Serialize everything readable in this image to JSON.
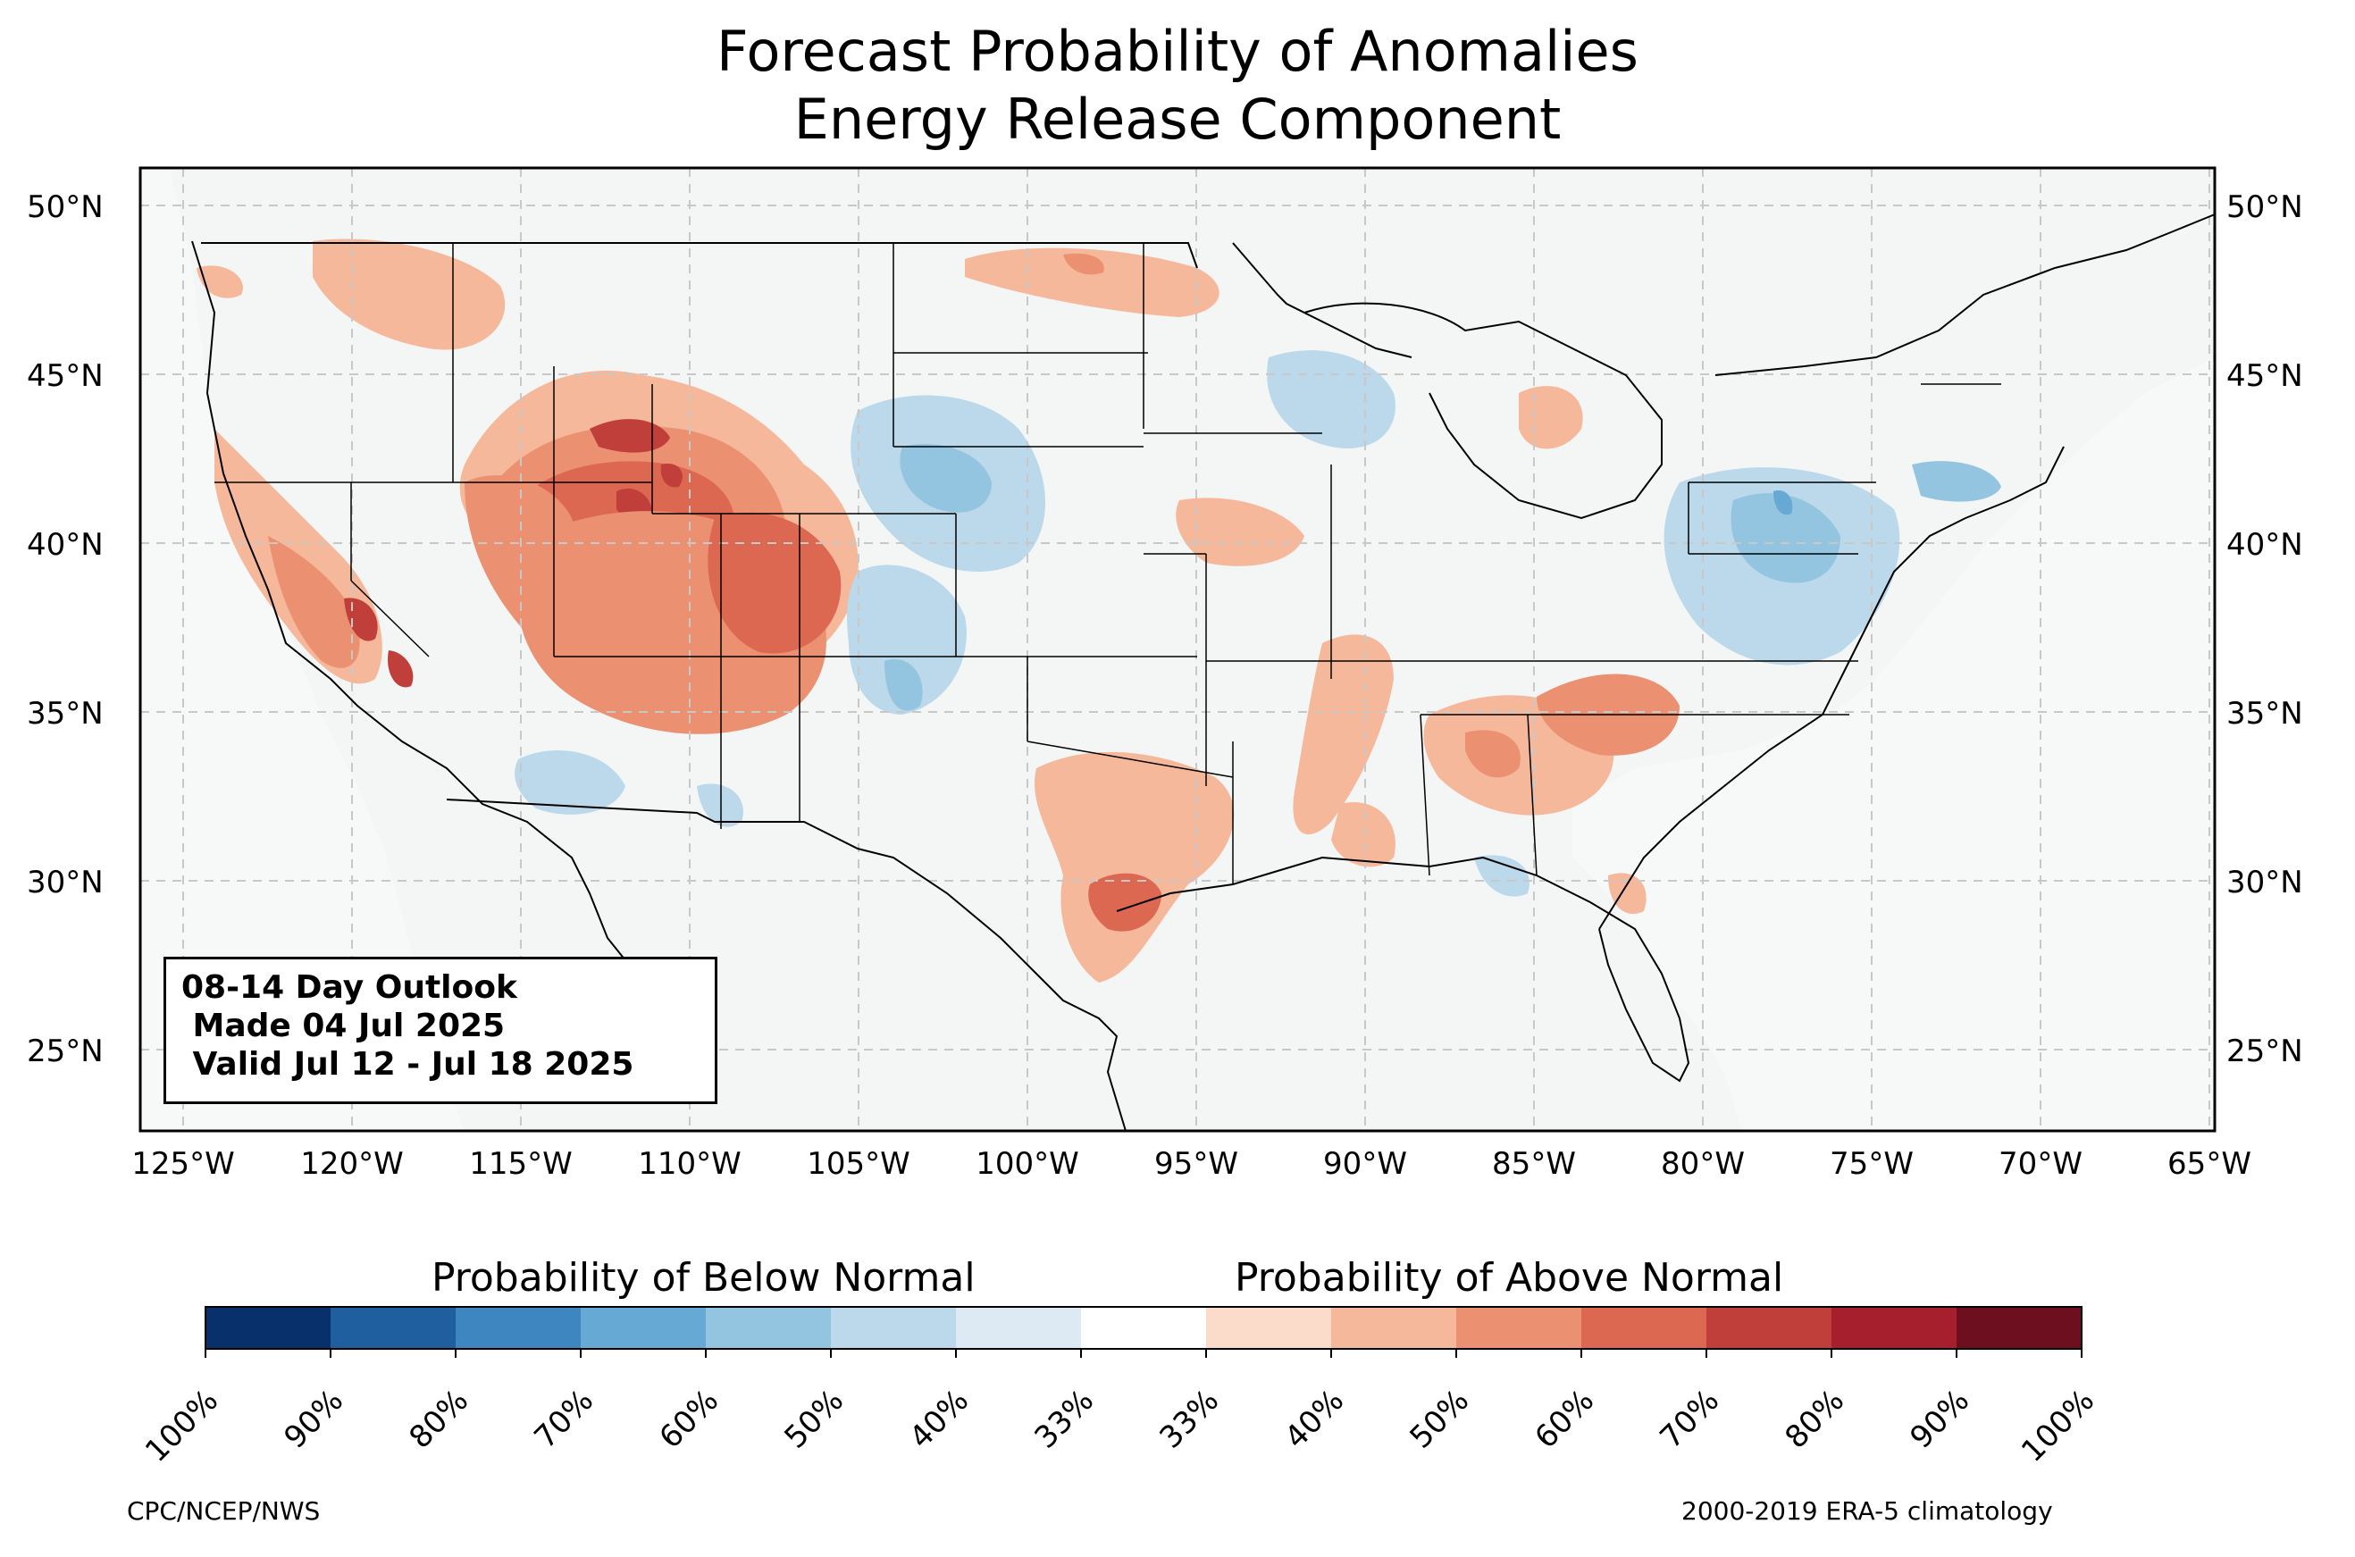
{
  "title_line1": "Forecast Probability of Anomalies",
  "title_line2": "Energy Release Component",
  "outlook": {
    "line1": "08-14 Day Outlook",
    "line2": " Made 04 Jul 2025",
    "line3": " Valid Jul 12 - Jul 18 2025"
  },
  "lat_labels": [
    "50°N",
    "45°N",
    "40°N",
    "35°N",
    "30°N",
    "25°N"
  ],
  "lon_labels": [
    "125°W",
    "120°W",
    "115°W",
    "110°W",
    "105°W",
    "100°W",
    "95°W",
    "90°W",
    "85°W",
    "80°W",
    "75°W",
    "70°W",
    "65°W"
  ],
  "colorbar": {
    "below_label": "Probability of Below Normal",
    "above_label": "Probability of Above Normal",
    "ticks": [
      "100%",
      "90%",
      "80%",
      "70%",
      "60%",
      "50%",
      "40%",
      "33%",
      "33%",
      "40%",
      "50%",
      "60%",
      "70%",
      "80%",
      "90%",
      "100%"
    ],
    "colors": [
      "#08306b",
      "#1f5fa0",
      "#3e86c0",
      "#66a9d4",
      "#93c5e0",
      "#bbd9ea",
      "#dde9f3",
      "#ffffff",
      "#fbdccb",
      "#f6b89b",
      "#ec9072",
      "#dc6852",
      "#c13f3b",
      "#a5202c",
      "#6d0f1f"
    ]
  },
  "footer_left": "CPC/NCEP/NWS",
  "footer_right": "2000-2019 ERA-5 climatology"
}
